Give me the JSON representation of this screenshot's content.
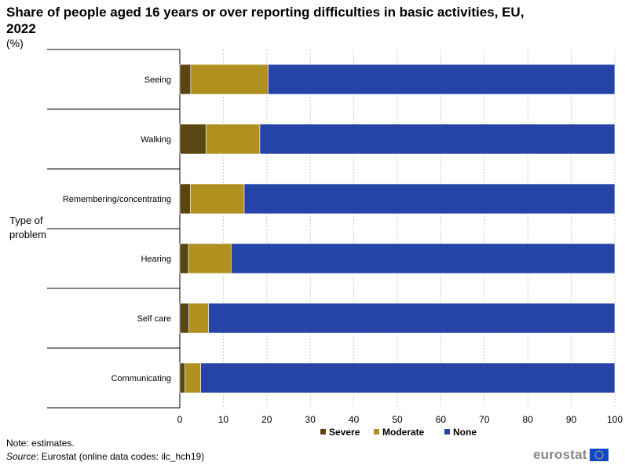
{
  "header": {
    "title": "Share of people aged 16 years or over reporting difficulties in basic activities, EU, 2022",
    "unit": "(%)"
  },
  "footer": {
    "note": "Note: estimates.",
    "source_label": "Source",
    "source_text": ": Eurostat (online data codes: ilc_hch19)",
    "logo_text": "eurostat"
  },
  "colors": {
    "severe": "#5a4610",
    "moderate": "#b09120",
    "none": "#2644a8",
    "grid": "#c8c8c8",
    "axis": "#000000"
  },
  "chart_data": {
    "type": "bar",
    "orientation": "horizontal",
    "stacked": true,
    "title": "Share of people aged 16 years or over reporting difficulties in basic activities, EU, 2022",
    "ylabel": "Type of problem",
    "xlabel": "",
    "xlim": [
      0,
      100
    ],
    "xticks": [
      0,
      10,
      20,
      30,
      40,
      50,
      60,
      70,
      80,
      90,
      100
    ],
    "grid": true,
    "legend_position": "bottom",
    "categories": [
      "Seeing",
      "Walking",
      "Remembering/concentrating",
      "Hearing",
      "Self care",
      "Communicating"
    ],
    "series": [
      {
        "name": "Severe",
        "color_key": "severe",
        "values": [
          2.5,
          6.0,
          2.4,
          2.0,
          2.1,
          1.2
        ]
      },
      {
        "name": "Moderate",
        "color_key": "moderate",
        "values": [
          17.8,
          12.4,
          12.4,
          9.8,
          4.5,
          3.6
        ]
      },
      {
        "name": "None",
        "color_key": "none",
        "values": [
          79.7,
          81.6,
          85.2,
          88.2,
          93.4,
          95.2
        ]
      }
    ]
  }
}
